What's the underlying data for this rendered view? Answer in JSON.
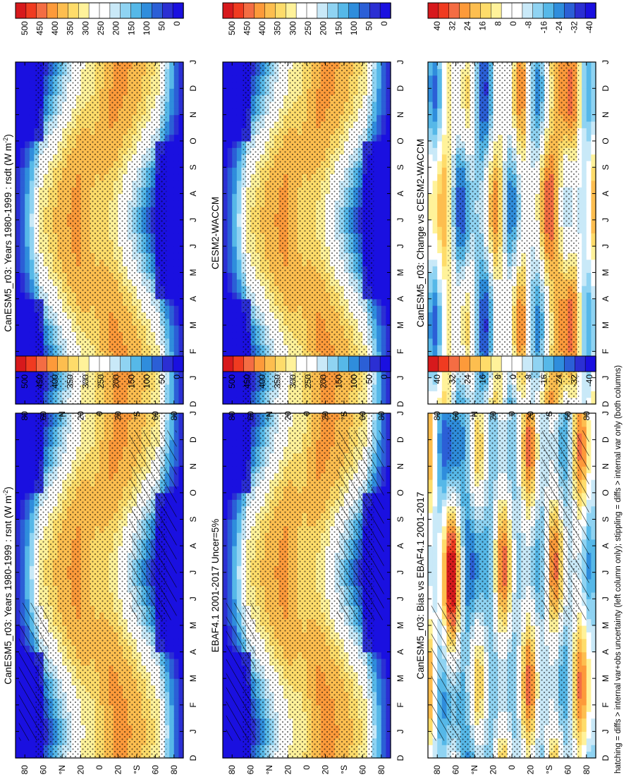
{
  "footnote": "hatching = diffs > internal var+obs uncertainty (left column only); stippling = diffs > internal var only (both columns)",
  "month_labels": [
    "D",
    "J",
    "F",
    "M",
    "A",
    "M",
    "J",
    "J",
    "A",
    "S",
    "O",
    "N",
    "D",
    "J"
  ],
  "lat_labels": [
    "80",
    "60",
    "°N",
    "20",
    "0",
    "20",
    "°S",
    "60",
    "80"
  ],
  "colorbars": {
    "abs": {
      "labels": [
        "500",
        "450",
        "400",
        "350",
        "300",
        "250",
        "200",
        "150",
        "100",
        "50",
        "0"
      ],
      "colors": [
        "#d7191c",
        "#f03b20",
        "#f46d43",
        "#fd9a3a",
        "#fdbe4f",
        "#fedc6a",
        "#fff29a",
        "#ffffff",
        "#ffffff",
        "#c9e9f8",
        "#8fd3f2",
        "#56b8e8",
        "#2f8ddc",
        "#2b5fd6",
        "#2b2fd3",
        "#1a10e0"
      ]
    },
    "diff": {
      "labels": [
        "40",
        "32",
        "24",
        "16",
        "8",
        "0",
        "-8",
        "-16",
        "-24",
        "-32",
        "-40"
      ],
      "colors": [
        "#d7191c",
        "#f03b20",
        "#f46d43",
        "#fd9a3a",
        "#fdbe4f",
        "#fedc6a",
        "#fff29a",
        "#ffffff",
        "#ffffff",
        "#c9e9f8",
        "#8fd3f2",
        "#56b8e8",
        "#2f8ddc",
        "#2b5fd6",
        "#2b2fd3",
        "#1a10e0"
      ]
    }
  },
  "chart_data": [
    {
      "type": "heatmap",
      "id": "p1",
      "title": "CanESM5_r03: Years 1980-1999 : rsnt (W m",
      "title_sup": "-2",
      "title_end": ")",
      "kind": "abs",
      "zlim": [
        0,
        500
      ],
      "hatch": true,
      "stipple": true
    },
    {
      "type": "heatmap",
      "id": "p2",
      "title": "CanESM5_r03: Years 1980-1999 : rsdt (W m",
      "title_sup": "-2",
      "title_end": ")",
      "kind": "abs",
      "zlim": [
        0,
        500
      ],
      "hatch": false,
      "stipple": true
    },
    {
      "type": "heatmap",
      "id": "p3",
      "title": "EBAF4.1 2001-2017 Uncer=5%",
      "title_sup": "",
      "title_end": "",
      "kind": "abs",
      "zlim": [
        0,
        500
      ],
      "hatch": true,
      "stipple": true
    },
    {
      "type": "heatmap",
      "id": "p4",
      "title": "CESM2-WACCM",
      "title_sup": "",
      "title_end": "",
      "kind": "abs",
      "zlim": [
        0,
        500
      ],
      "hatch": false,
      "stipple": true
    },
    {
      "type": "heatmap",
      "id": "p5",
      "title": "CanESM5_r03: Bias vs EBAF4.1 2001-2017",
      "title_sup": "",
      "title_end": "",
      "kind": "diff",
      "zlim": [
        -40,
        40
      ],
      "hatch": true,
      "stipple": true
    },
    {
      "type": "heatmap",
      "id": "p6",
      "title": "CanESM5_r03: Change vs CESM2-WACCM",
      "title_sup": "",
      "title_end": "",
      "kind": "diff",
      "zlim": [
        -40,
        40
      ],
      "hatch": false,
      "stipple": true
    }
  ]
}
